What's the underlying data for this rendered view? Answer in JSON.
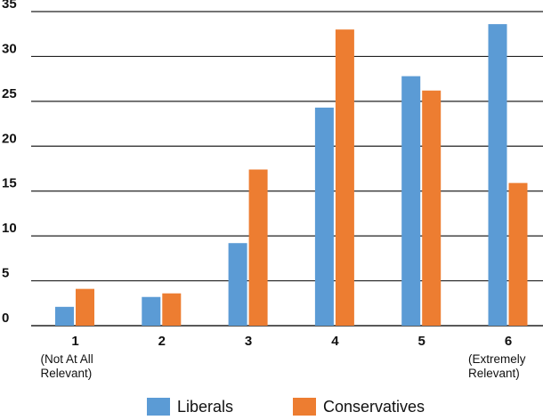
{
  "chart_data": {
    "type": "bar",
    "categories": [
      "1",
      "2",
      "3",
      "4",
      "5",
      "6"
    ],
    "category_sublabels": [
      [
        "(Not At All",
        "Relevant)"
      ],
      [],
      [],
      [],
      [],
      [
        "(Extremely",
        "Relevant)"
      ]
    ],
    "series": [
      {
        "name": "Liberals",
        "values": [
          2.1,
          3.2,
          9.2,
          24.3,
          27.8,
          33.6
        ],
        "color": "#5b9bd5"
      },
      {
        "name": "Conservatives",
        "values": [
          4.1,
          3.6,
          17.4,
          33.0,
          26.2,
          15.9
        ],
        "color": "#ed7d31"
      }
    ],
    "ylim": [
      0,
      35
    ],
    "yticks": [
      "0",
      "5",
      "10",
      "15",
      "20",
      "25",
      "30",
      "35"
    ],
    "grid": true,
    "legend": "bottom",
    "title": "",
    "xlabel": "",
    "ylabel": ""
  }
}
